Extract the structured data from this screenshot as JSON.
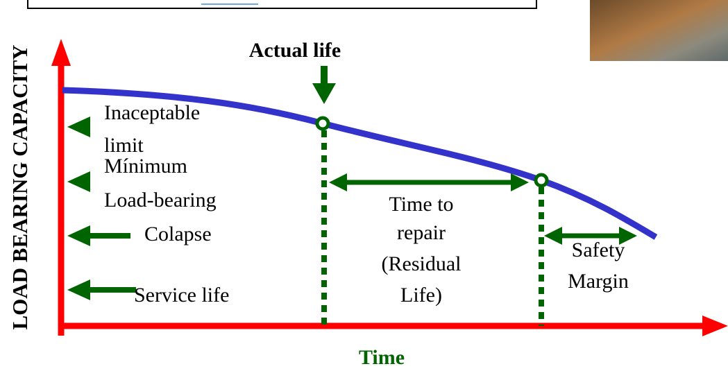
{
  "y_axis_label": "LOAD BEARING CAPACITY",
  "x_axis_label": "Time",
  "actual_life": "Actual life",
  "levels": {
    "inaceptable_limit": [
      "Inaceptable",
      "limit"
    ],
    "minimum_load_bearing": [
      "Mínimum",
      "Load-bearing"
    ],
    "colapse": "Colapse",
    "service_life": "Service life"
  },
  "time_to_repair": [
    "Time to",
    "repair",
    "(Residual",
    "Life)"
  ],
  "safety_margin": [
    "Safety",
    "Margin"
  ]
}
